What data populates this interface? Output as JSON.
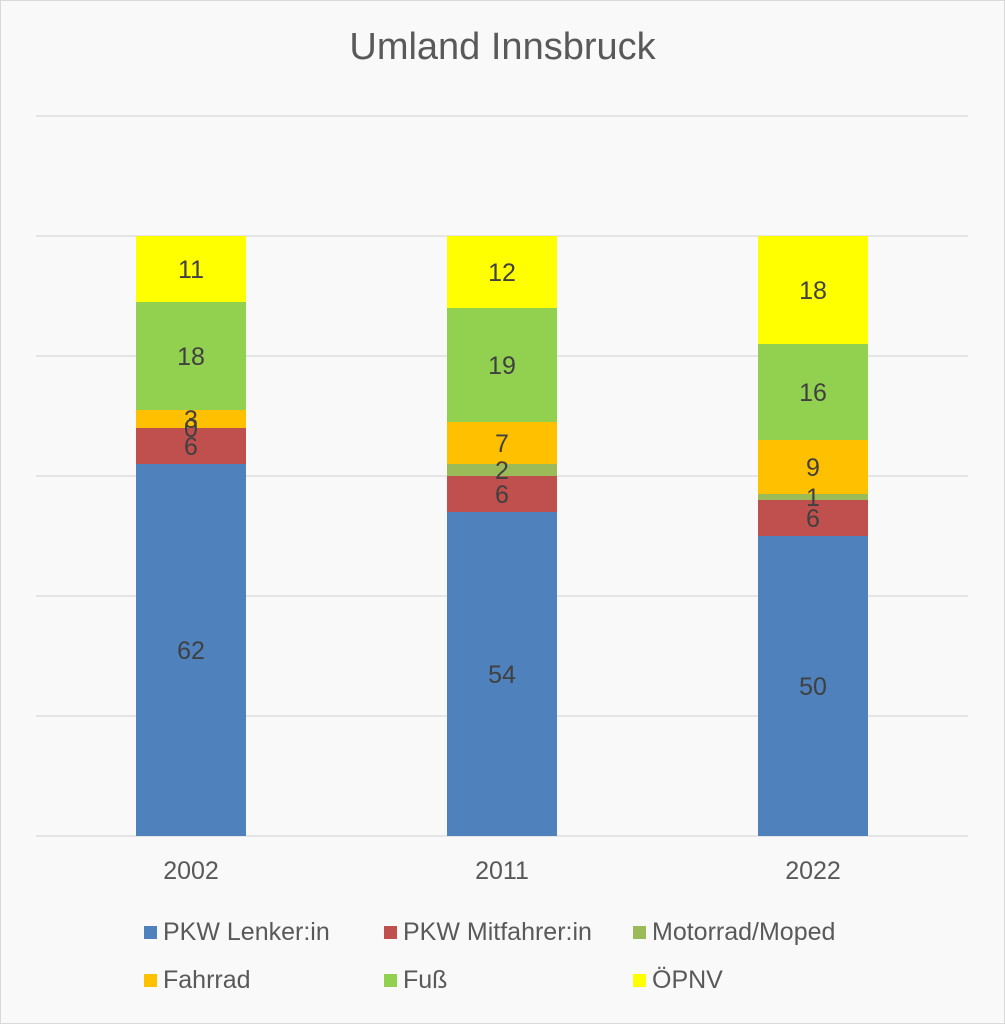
{
  "chart_data": {
    "type": "bar",
    "stacked": true,
    "title": "Umland Innsbruck",
    "xlabel": "",
    "ylabel": "",
    "categories": [
      "2002",
      "2011",
      "2022"
    ],
    "ylim": [
      0,
      120
    ],
    "grid": true,
    "y_tick_labels_shown": false,
    "legend_position": "bottom",
    "series": [
      {
        "name": "PKW Lenker:in",
        "color": "#4f81bd",
        "values": [
          62,
          54,
          50
        ]
      },
      {
        "name": "PKW Mitfahrer:in",
        "color": "#c0504d",
        "values": [
          6,
          6,
          6
        ]
      },
      {
        "name": "Motorrad/Moped",
        "color": "#9bbb59",
        "values": [
          0,
          2,
          1
        ]
      },
      {
        "name": "Fahrrad",
        "color": "#ffc000",
        "values": [
          3,
          7,
          9
        ]
      },
      {
        "name": "Fuß",
        "color": "#92d050",
        "values": [
          18,
          19,
          16
        ]
      },
      {
        "name": "ÖPNV",
        "color": "#ffff00",
        "values": [
          11,
          12,
          18
        ]
      }
    ]
  }
}
